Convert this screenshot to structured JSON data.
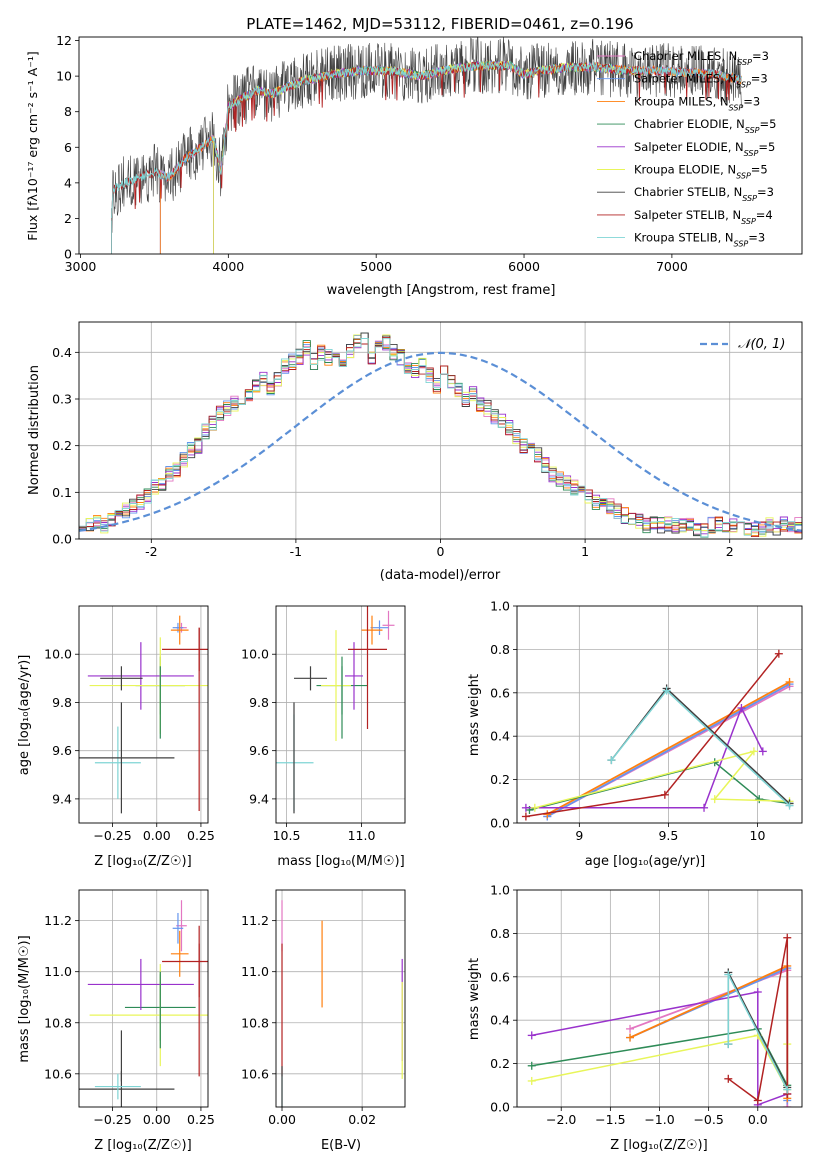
{
  "figure_title": "PLATE=1462, MJD=53112, FIBERID=0461, z=0.196",
  "model_colors": [
    "#e377c2",
    "#6495ed",
    "#ff7f0e",
    "#2e8b57",
    "#9932cc",
    "#e8f55a",
    "#404040",
    "#b22222",
    "#7fd4d4"
  ],
  "panel_spectrum": {
    "xlabel": "wavelength [Angstrom, rest frame]",
    "ylabel": "Flux [fλ10⁻¹⁷ erg cm⁻² s⁻¹ A⁻¹]",
    "xlim": [
      2990,
      7880
    ],
    "ylim": [
      0,
      12.2
    ],
    "xticks": [
      3000,
      4000,
      5000,
      6000,
      7000
    ],
    "yticks": [
      0,
      2,
      4,
      6,
      8,
      10,
      12
    ],
    "legend": [
      "Chabrier MILES, N_SSP=3",
      "Salpeter MILES, N_SSP=3",
      "Kroupa MILES, N_SSP=3",
      "Chabrier ELODIE, N_SSP=5",
      "Salpeter ELODIE, N_SSP=5",
      "Kroupa ELODIE, N_SSP=5",
      "Chabrier STELIB, N_SSP=3",
      "Salpeter STELIB, N_SSP=4",
      "Kroupa STELIB, N_SSP=3"
    ]
  },
  "panel_residuals": {
    "xlabel": "(data-model)/error",
    "ylabel": "Normed distribution",
    "legend": "𝒩(0, 1)",
    "xlim": [
      -2.5,
      2.5
    ],
    "ylim": [
      0,
      0.465
    ],
    "xticks": [
      -2,
      -1,
      0,
      1,
      2
    ],
    "yticks": [
      0.0,
      0.1,
      0.2,
      0.3,
      0.4
    ]
  },
  "panel_z_age": {
    "xlabel": "Z [log₁₀(Z/Z☉)]",
    "ylabel": "age  [log₁₀(age/yr)]",
    "xlim": [
      -0.44,
      0.29
    ],
    "ylim": [
      9.3,
      10.2
    ],
    "xticks": [
      -0.25,
      0.0,
      0.25
    ],
    "xtick_labels": [
      "−0.25",
      "0.00",
      "0.25"
    ],
    "yticks": [
      9.4,
      9.6,
      9.8,
      10.0
    ]
  },
  "panel_mass_age": {
    "xlabel": "mass [log₁₀(M/M☉)]",
    "xlim": [
      10.43,
      11.29
    ],
    "ylim": [
      9.3,
      10.2
    ],
    "xticks": [
      10.5,
      11.0
    ],
    "xtick_labels": [
      "10.5",
      "11.0"
    ],
    "yticks": [
      9.4,
      9.6,
      9.8,
      10.0
    ]
  },
  "panel_age_weight": {
    "xlabel": "age  [log₁₀(age/yr)]",
    "ylabel": "mass weight",
    "xlim": [
      8.65,
      10.25
    ],
    "ylim": [
      0,
      1.0
    ],
    "xticks": [
      9.0,
      9.5,
      10.0
    ],
    "yticks": [
      0.0,
      0.2,
      0.4,
      0.6,
      0.8,
      1.0
    ]
  },
  "panel_z_mass": {
    "xlabel": "Z [log₁₀(Z/Z☉)]",
    "ylabel": "mass [log₁₀(M/M☉)]",
    "xlim": [
      -0.44,
      0.29
    ],
    "ylim": [
      10.47,
      11.32
    ],
    "xticks": [
      -0.25,
      0.0,
      0.25
    ],
    "xtick_labels": [
      "−0.25",
      "0.00",
      "0.25"
    ],
    "yticks": [
      10.6,
      10.8,
      11.0,
      11.2
    ]
  },
  "panel_ebv_mass": {
    "xlabel": "E(B-V)",
    "xlim": [
      -0.0015,
      0.0307
    ],
    "ylim": [
      10.47,
      11.32
    ],
    "xticks": [
      0.0,
      0.02
    ],
    "xtick_labels": [
      "0.00",
      "0.02"
    ],
    "yticks": [
      10.6,
      10.8,
      11.0,
      11.2
    ]
  },
  "panel_z_weight": {
    "xlabel": "Z [log₁₀(Z/Z☉)]",
    "ylabel": "mass weight",
    "xlim": [
      -2.45,
      0.45
    ],
    "ylim": [
      0,
      1.0
    ],
    "xticks": [
      -2.0,
      -1.5,
      -1.0,
      -0.5,
      0.0
    ],
    "xtick_labels": [
      "−2.0",
      "−1.5",
      "−1.0",
      "−0.5",
      "0.0"
    ],
    "yticks": [
      0.0,
      0.2,
      0.4,
      0.6,
      0.8,
      1.0
    ]
  },
  "chart_data": [
    {
      "type": "line",
      "title": "PLATE=1462, MJD=53112, FIBERID=0461, z=0.196",
      "xlabel": "wavelength [Angstrom, rest frame]",
      "ylabel": "Flux [fλ10⁻¹⁷ erg cm⁻² s⁻¹ A⁻¹]",
      "xlim": [
        2990,
        7880
      ],
      "ylim": [
        0,
        12.2
      ],
      "grid": false,
      "legend_placement": "top-right",
      "continuum": {
        "x": [
          3200,
          3220,
          3300,
          3400,
          3500,
          3600,
          3700,
          3800,
          3900,
          3950,
          4000,
          4100,
          4200,
          4300,
          4400,
          4500,
          4700,
          4900,
          5100,
          5300,
          5500,
          5700,
          5900,
          6000,
          6100,
          6300,
          6500,
          6700,
          6900,
          7100,
          7300,
          7470
        ],
        "y": [
          0.2,
          3.6,
          4.0,
          4.3,
          4.6,
          4.3,
          5.3,
          5.9,
          6.5,
          4.6,
          8.3,
          8.8,
          9.2,
          9.0,
          9.4,
          9.7,
          10.1,
          10.3,
          10.3,
          10.0,
          10.4,
          10.6,
          10.6,
          10.1,
          10.3,
          10.5,
          10.5,
          10.3,
          10.3,
          10.2,
          10.1,
          9.8
        ]
      },
      "series": [
        {
          "name": "Chabrier MILES, N_SSP=3",
          "start": 3540,
          "end": 7470
        },
        {
          "name": "Salpeter MILES, N_SSP=3",
          "start": 3540,
          "end": 7470
        },
        {
          "name": "Kroupa MILES, N_SSP=3",
          "start": 3540,
          "end": 7470
        },
        {
          "name": "Chabrier ELODIE, N_SSP=5",
          "start": 3900,
          "end": 6800
        },
        {
          "name": "Salpeter ELODIE, N_SSP=5",
          "start": 3900,
          "end": 6800
        },
        {
          "name": "Kroupa ELODIE, N_SSP=5",
          "start": 3900,
          "end": 6800
        },
        {
          "name": "Chabrier STELIB, N_SSP=3",
          "start": 3210,
          "end": 7470
        },
        {
          "name": "Salpeter STELIB, N_SSP=4",
          "start": 3210,
          "end": 7470
        },
        {
          "name": "Kroupa STELIB, N_SSP=3",
          "start": 3210,
          "end": 7470
        }
      ]
    },
    {
      "type": "histogram",
      "xlabel": "(data-model)/error",
      "ylabel": "Normed distribution",
      "xlim": [
        -2.5,
        2.5
      ],
      "ylim": [
        0,
        0.465
      ],
      "bin_width": 0.1,
      "reference_curve": {
        "name": "𝒩(0, 1)",
        "style": "dashed",
        "color": "#5b8fd6"
      },
      "base_distribution": [
        0.02,
        0.03,
        0.04,
        0.03,
        0.04,
        0.05,
        0.06,
        0.07,
        0.08,
        0.09,
        0.11,
        0.12,
        0.14,
        0.15,
        0.17,
        0.19,
        0.2,
        0.23,
        0.25,
        0.27,
        0.28,
        0.29,
        0.29,
        0.31,
        0.33,
        0.34,
        0.32,
        0.34,
        0.37,
        0.38,
        0.39,
        0.41,
        0.38,
        0.4,
        0.39,
        0.38,
        0.37,
        0.4,
        0.42,
        0.43,
        0.39,
        0.41,
        0.42,
        0.4,
        0.39,
        0.37,
        0.36,
        0.37,
        0.35,
        0.33,
        0.36,
        0.34,
        0.32,
        0.3,
        0.31,
        0.29,
        0.28,
        0.26,
        0.25,
        0.24,
        0.22,
        0.2,
        0.19,
        0.18,
        0.16,
        0.14,
        0.13,
        0.12,
        0.11,
        0.1,
        0.09,
        0.08,
        0.07,
        0.07,
        0.06,
        0.05,
        0.04,
        0.04,
        0.03,
        0.03,
        0.03,
        0.03,
        0.03,
        0.03,
        0.03,
        0.02,
        0.02,
        0.03,
        0.03,
        0.03,
        0.03,
        0.02,
        0.02,
        0.02,
        0.02,
        0.03,
        0.02,
        0.03,
        0.03,
        0.03
      ],
      "bins_start": -2.5,
      "series_names": [
        "Chabrier MILES, N_SSP=3",
        "Salpeter MILES, N_SSP=3",
        "Kroupa MILES, N_SSP=3",
        "Chabrier ELODIE, N_SSP=5",
        "Salpeter ELODIE, N_SSP=5",
        "Kroupa ELODIE, N_SSP=5",
        "Chabrier STELIB, N_SSP=3",
        "Salpeter STELIB, N_SSP=4",
        "Kroupa STELIB, N_SSP=3"
      ]
    },
    {
      "type": "errorbar",
      "xlabel": "Z [log₁₀(Z/Z☉)]",
      "ylabel": "age  [log₁₀(age/yr)]",
      "points": [
        {
          "series": "Chabrier MILES, N_SSP=3",
          "x": 0.14,
          "y": 10.11,
          "xerr": 0.03,
          "yerr": 0.02
        },
        {
          "series": "Salpeter MILES, N_SSP=3",
          "x": 0.12,
          "y": 10.11,
          "xerr": 0.03,
          "yerr": 0.02
        },
        {
          "series": "Kroupa MILES, N_SSP=3",
          "x": 0.13,
          "y": 10.1,
          "xerr": 0.05,
          "yerr": 0.06
        },
        {
          "series": "Chabrier ELODIE, N_SSP=5",
          "x": 0.02,
          "y": 9.87,
          "xerr": 0.14,
          "yerr": 0.12
        },
        {
          "series": "Salpeter ELODIE, N_SSP=5",
          "x": -0.09,
          "y": 9.91,
          "xerr": 0.3,
          "yerr": 0.14
        },
        {
          "series": "Kroupa ELODIE, N_SSP=5",
          "x": 0.02,
          "y": 9.87,
          "xerr": 0.4,
          "yerr": 0.2
        },
        {
          "series": "Chabrier STELIB, N_SSP=3",
          "x": -0.2,
          "y": 9.9,
          "xerr": 0.12,
          "yerr": 0.05
        },
        {
          "series": "Salpeter STELIB, N_SSP=4",
          "x": 0.24,
          "y": 10.02,
          "xerr": 0.21,
          "yerr": 0.09
        },
        {
          "series": "Kroupa STELIB, N_SSP=3",
          "x": -0.22,
          "y": 9.55,
          "xerr": 0.13,
          "yerr": 0.15
        }
      ],
      "extra_bars": [
        {
          "series": "Chabrier STELIB, N_SSP=3",
          "x": -0.2,
          "y": 9.57,
          "xerr": 0.3,
          "yerr": 0.23
        },
        {
          "series": "Salpeter STELIB, N_SSP=4",
          "x": 0.24,
          "y": 9.73,
          "xerr": 0.0,
          "yerr": 0.38
        },
        {
          "series": "Chabrier ELODIE, N_SSP=5",
          "x": 0.02,
          "y": 9.8,
          "xerr": 0.0,
          "yerr": 0.15
        }
      ]
    },
    {
      "type": "errorbar",
      "xlabel": "mass [log₁₀(M/M☉)]",
      "points": [
        {
          "series": "Chabrier MILES, N_SSP=3",
          "x": 11.18,
          "y": 10.12,
          "xerr": 0.04,
          "yerr": 0.06
        },
        {
          "series": "Salpeter MILES, N_SSP=3",
          "x": 11.12,
          "y": 10.11,
          "xerr": 0.06,
          "yerr": 0.03
        },
        {
          "series": "Kroupa MILES, N_SSP=3",
          "x": 11.07,
          "y": 10.1,
          "xerr": 0.07,
          "yerr": 0.06
        },
        {
          "series": "Chabrier ELODIE, N_SSP=5",
          "x": 10.87,
          "y": 9.87,
          "xerr": 0.17,
          "yerr": 0.12
        },
        {
          "series": "Salpeter ELODIE, N_SSP=5",
          "x": 10.95,
          "y": 9.91,
          "xerr": 0.06,
          "yerr": 0.14
        },
        {
          "series": "Kroupa ELODIE, N_SSP=5",
          "x": 10.83,
          "y": 9.87,
          "xerr": 0.1,
          "yerr": 0.23
        },
        {
          "series": "Chabrier STELIB, N_SSP=3",
          "x": 10.66,
          "y": 9.9,
          "xerr": 0.11,
          "yerr": 0.05
        },
        {
          "series": "Salpeter STELIB, N_SSP=4",
          "x": 11.04,
          "y": 10.02,
          "xerr": 0.13,
          "yerr": 0.33
        },
        {
          "series": "Kroupa STELIB, N_SSP=3",
          "x": 10.55,
          "y": 9.55,
          "xerr": 0.13,
          "yerr": 0.2
        }
      ],
      "extra_bars": [
        {
          "series": "Chabrier STELIB, N_SSP=3",
          "x": 10.55,
          "y": 9.57,
          "xerr": 0.0,
          "yerr": 0.23
        },
        {
          "series": "Chabrier ELODIE, N_SSP=5",
          "x": 10.87,
          "y": 9.8,
          "xerr": 0.0,
          "yerr": 0.15
        }
      ]
    },
    {
      "type": "line",
      "xlabel": "age  [log₁₀(age/yr)]",
      "ylabel": "mass weight",
      "grid": true,
      "series": [
        {
          "name": "Chabrier MILES, N_SSP=3",
          "x": [
            8.82,
            10.18
          ],
          "y": [
            0.03,
            0.63
          ]
        },
        {
          "name": "Salpeter MILES, N_SSP=3",
          "x": [
            8.82,
            10.18
          ],
          "y": [
            0.03,
            0.64
          ]
        },
        {
          "name": "Kroupa MILES, N_SSP=3",
          "x": [
            8.82,
            10.18
          ],
          "y": [
            0.04,
            0.65
          ]
        },
        {
          "name": "Chabrier ELODIE, N_SSP=5",
          "x": [
            8.72,
            9.76,
            10.01,
            10.18
          ],
          "y": [
            0.06,
            0.28,
            0.11,
            0.09
          ]
        },
        {
          "name": "Salpeter ELODIE, N_SSP=5",
          "x": [
            8.7,
            9.7,
            9.91,
            10.03
          ],
          "y": [
            0.07,
            0.07,
            0.53,
            0.33
          ]
        },
        {
          "name": "Kroupa ELODIE, N_SSP=5",
          "x": [
            8.75,
            9.98,
            9.76,
            10.18
          ],
          "y": [
            0.07,
            0.33,
            0.11,
            0.1
          ]
        },
        {
          "name": "Chabrier STELIB, N_SSP=3",
          "x": [
            9.18,
            9.49,
            10.18
          ],
          "y": [
            0.29,
            0.62,
            0.09
          ]
        },
        {
          "name": "Salpeter STELIB, N_SSP=4",
          "x": [
            8.7,
            9.48,
            10.12
          ],
          "y": [
            0.03,
            0.13,
            0.78
          ]
        },
        {
          "name": "Kroupa STELIB, N_SSP=3",
          "x": [
            9.18,
            9.49,
            10.18
          ],
          "y": [
            0.29,
            0.61,
            0.08
          ]
        }
      ]
    },
    {
      "type": "errorbar",
      "xlabel": "Z [log₁₀(Z/Z☉)]",
      "ylabel": "mass [log₁₀(M/M☉)]",
      "points": [
        {
          "series": "Chabrier MILES, N_SSP=3",
          "x": 0.14,
          "y": 11.18,
          "xerr": 0.03,
          "yerr": 0.1
        },
        {
          "series": "Salpeter MILES, N_SSP=3",
          "x": 0.12,
          "y": 11.17,
          "xerr": 0.03,
          "yerr": 0.06
        },
        {
          "series": "Kroupa MILES, N_SSP=3",
          "x": 0.13,
          "y": 11.07,
          "xerr": 0.05,
          "yerr": 0.09
        },
        {
          "series": "Chabrier ELODIE, N_SSP=5",
          "x": 0.02,
          "y": 10.86,
          "xerr": 0.2,
          "yerr": 0.13
        },
        {
          "series": "Salpeter ELODIE, N_SSP=5",
          "x": -0.09,
          "y": 10.95,
          "xerr": 0.3,
          "yerr": 0.1
        },
        {
          "series": "Kroupa ELODIE, N_SSP=5",
          "x": 0.02,
          "y": 10.83,
          "xerr": 0.4,
          "yerr": 0.2
        },
        {
          "series": "Chabrier STELIB, N_SSP=3",
          "x": -0.2,
          "y": 10.54,
          "xerr": 0.3,
          "yerr": 0.07
        },
        {
          "series": "Salpeter STELIB, N_SSP=4",
          "x": 0.24,
          "y": 11.04,
          "xerr": 0.21,
          "yerr": 0.14
        },
        {
          "series": "Kroupa STELIB, N_SSP=3",
          "x": -0.22,
          "y": 10.55,
          "xerr": 0.13,
          "yerr": 0.05
        }
      ],
      "extra_bars": [
        {
          "series": "Chabrier STELIB, N_SSP=3",
          "x": -0.2,
          "y": 10.67,
          "xerr": 0.0,
          "yerr": 0.1
        },
        {
          "series": "Salpeter STELIB, N_SSP=4",
          "x": 0.24,
          "y": 10.85,
          "xerr": 0.0,
          "yerr": 0.26
        },
        {
          "series": "Chabrier ELODIE, N_SSP=5",
          "x": 0.02,
          "y": 10.85,
          "xerr": 0.0,
          "yerr": 0.15
        }
      ]
    },
    {
      "type": "errorbar",
      "xlabel": "E(B-V)",
      "points": [
        {
          "series": "Chabrier MILES, N_SSP=3",
          "x": 0.0,
          "y": 11.18,
          "xerr": 0.0,
          "yerr": 0.1
        },
        {
          "series": "Kroupa MILES, N_SSP=3",
          "x": 0.01,
          "y": 11.03,
          "xerr": 0.0,
          "yerr": 0.17
        },
        {
          "series": "Salpeter STELIB, N_SSP=4",
          "x": 0.0,
          "y": 10.85,
          "xerr": 0.0,
          "yerr": 0.26
        },
        {
          "series": "Kroupa STELIB, N_SSP=3",
          "x": 0.0,
          "y": 10.52,
          "xerr": 0.0,
          "yerr": 0.08
        },
        {
          "series": "Chabrier STELIB, N_SSP=3",
          "x": 0.0,
          "y": 10.55,
          "xerr": 0.0,
          "yerr": 0.08
        },
        {
          "series": "Salpeter ELODIE, N_SSP=5",
          "x": 0.03,
          "y": 10.85,
          "xerr": 0.0,
          "yerr": 0.2
        },
        {
          "series": "Kroupa ELODIE, N_SSP=5",
          "x": 0.03,
          "y": 10.77,
          "xerr": 0.0,
          "yerr": 0.19
        }
      ]
    },
    {
      "type": "line",
      "xlabel": "Z [log₁₀(Z/Z☉)]",
      "ylabel": "mass weight",
      "grid": true,
      "series": [
        {
          "name": "Chabrier MILES, N_SSP=3",
          "x": [
            -1.3,
            0.3,
            0.3
          ],
          "y": [
            0.36,
            0.63,
            0.0
          ]
        },
        {
          "name": "Salpeter MILES, N_SSP=3",
          "x": [
            -1.3,
            0.3,
            0.3
          ],
          "y": [
            0.32,
            0.64,
            0.03
          ]
        },
        {
          "name": "Kroupa MILES, N_SSP=3",
          "x": [
            -1.3,
            0.3,
            0.3
          ],
          "y": [
            0.32,
            0.65,
            0.04
          ]
        },
        {
          "name": "Chabrier ELODIE, N_SSP=5",
          "x": [
            -2.3,
            0.0,
            0.3
          ],
          "y": [
            0.19,
            0.36,
            0.1
          ]
        },
        {
          "name": "Salpeter ELODIE, N_SSP=5",
          "x": [
            -2.3,
            0.0,
            0.0,
            0.3
          ],
          "y": [
            0.33,
            0.53,
            0.01,
            0.06
          ]
        },
        {
          "name": "Kroupa ELODIE, N_SSP=5",
          "x": [
            -2.3,
            0.0,
            0.3,
            0.3
          ],
          "y": [
            0.12,
            0.33,
            0.08,
            0.29
          ]
        },
        {
          "name": "Chabrier STELIB, N_SSP=3",
          "x": [
            -0.3,
            -0.3,
            0.3
          ],
          "y": [
            0.29,
            0.62,
            0.09
          ]
        },
        {
          "name": "Salpeter STELIB, N_SSP=4",
          "x": [
            -0.3,
            0.0,
            0.3,
            0.3
          ],
          "y": [
            0.13,
            0.03,
            0.78,
            0.06
          ]
        },
        {
          "name": "Kroupa STELIB, N_SSP=3",
          "x": [
            -0.3,
            -0.3,
            0.3
          ],
          "y": [
            0.29,
            0.61,
            0.08
          ]
        }
      ]
    }
  ]
}
